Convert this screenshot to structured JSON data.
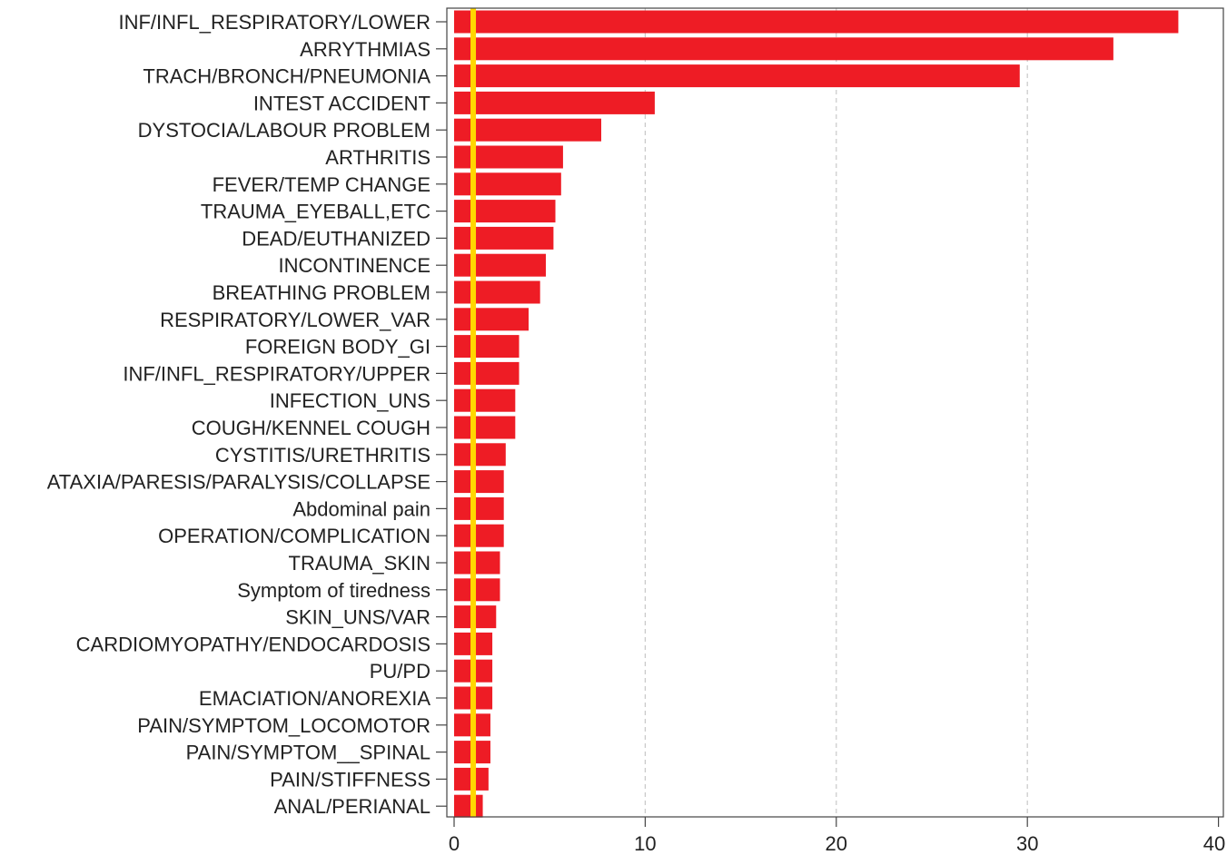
{
  "chart_data": {
    "type": "bar",
    "orientation": "horizontal",
    "categories": [
      "INF/INFL_RESPIRATORY/LOWER",
      "ARRYTHMIAS",
      "TRACH/BRONCH/PNEUMONIA",
      "INTEST ACCIDENT",
      "DYSTOCIA/LABOUR PROBLEM",
      "ARTHRITIS",
      "FEVER/TEMP CHANGE",
      "TRAUMA_EYEBALL,ETC",
      "DEAD/EUTHANIZED",
      "INCONTINENCE",
      "BREATHING PROBLEM",
      "RESPIRATORY/LOWER_VAR",
      "FOREIGN BODY_GI",
      "INF/INFL_RESPIRATORY/UPPER",
      "INFECTION_UNS",
      "COUGH/KENNEL COUGH",
      "CYSTITIS/URETHRITIS",
      "ATAXIA/PARESIS/PARALYSIS/COLLAPSE",
      "Abdominal pain",
      "OPERATION/COMPLICATION",
      "TRAUMA_SKIN",
      "Symptom of tiredness",
      "SKIN_UNS/VAR",
      "CARDIOMYOPATHY/ENDOCARDOSIS",
      "PU/PD",
      "EMACIATION/ANOREXIA",
      "PAIN/SYMPTOM_LOCOMOTOR",
      "PAIN/SYMPTOM__SPINAL",
      "PAIN/STIFFNESS",
      "ANAL/PERIANAL"
    ],
    "values": [
      37.9,
      34.5,
      29.6,
      10.5,
      7.7,
      5.7,
      5.6,
      5.3,
      5.2,
      4.8,
      4.5,
      3.9,
      3.4,
      3.4,
      3.2,
      3.2,
      2.7,
      2.6,
      2.6,
      2.6,
      2.4,
      2.4,
      2.2,
      2.0,
      2.0,
      2.0,
      1.9,
      1.9,
      1.8,
      1.5
    ],
    "reference_line": 1,
    "xlim": [
      0,
      40
    ],
    "xticks": [
      0,
      10,
      20,
      30,
      40
    ],
    "grid": "vertical dashed",
    "title": "",
    "xlabel": "",
    "ylabel": "",
    "colors": {
      "bar": "#ee1c25",
      "reference_line": "#ffd700",
      "grid": "#c8c8c8",
      "axis": "#444444"
    }
  }
}
